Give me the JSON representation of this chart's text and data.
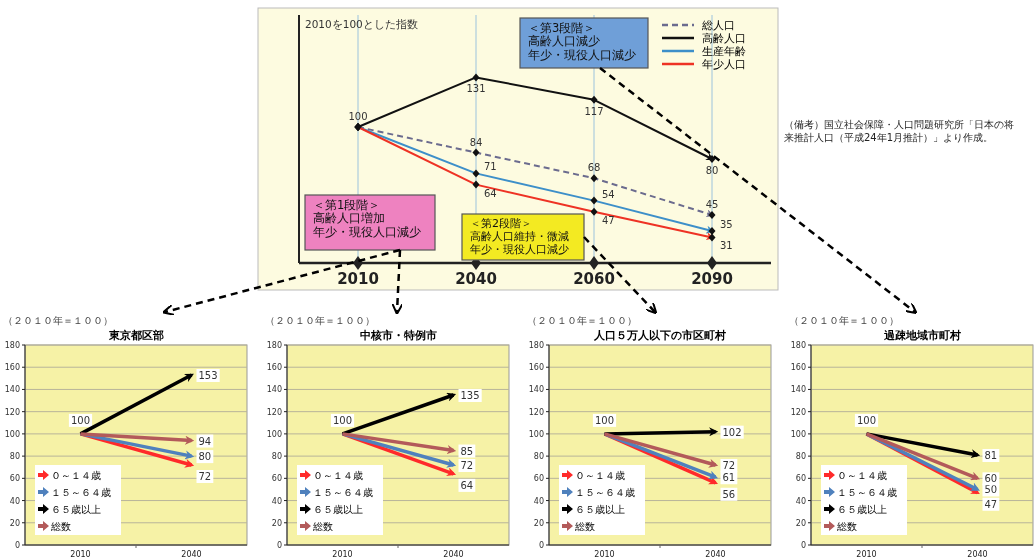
{
  "chart_data": [
    {
      "type": "line",
      "ylabel": "2010を100とした指数",
      "categories": [
        "2010",
        "2040",
        "2060",
        "2090"
      ],
      "ylim": [
        15,
        170
      ],
      "tick_labels": "x",
      "grid": "x",
      "marker": "diamond",
      "legend": "top right",
      "series": [
        {
          "name": "総人口",
          "color": "#6b6b8e",
          "line_style": "dashed",
          "values": [
            100,
            84,
            68,
            45
          ],
          "value_labels": [
            "100",
            "84",
            "68",
            "45"
          ]
        },
        {
          "name": "高齢人口",
          "color": "#111111",
          "values": [
            100,
            131,
            117,
            80
          ],
          "value_labels": [
            null,
            "131",
            "117",
            "80"
          ]
        },
        {
          "name": "生産年齢",
          "color": "#3d8fc9",
          "values": [
            100,
            71,
            54,
            35
          ],
          "value_labels": [
            null,
            "71",
            "54",
            "35"
          ]
        },
        {
          "name": "年少人口",
          "color": "#ee3224",
          "values": [
            100,
            64,
            47,
            31
          ],
          "value_labels": [
            null,
            "64",
            "47",
            "31"
          ]
        }
      ],
      "annotations": [
        "＜第1段階＞",
        "高齢人口増加",
        "年少・現役人口減少",
        "＜第2段階＞",
        "高齢人口維持・微減",
        "年少・現役人口減少",
        "＜第3段階＞",
        "高齢人口減少",
        "年少・現役人口減少",
        "（備考）国立社会保障・人口問題研究所「日本の将来推計人口（平成24年1月推計）」より作成。"
      ]
    },
    {
      "type": "line",
      "title": "東京都区部",
      "subtitle": "（２０１０年＝１００）",
      "categories": [
        "2010",
        "2040"
      ],
      "ylim": [
        0,
        180
      ],
      "yticks": [
        0,
        20,
        40,
        60,
        80,
        100,
        120,
        140,
        160,
        180
      ],
      "grid": "y",
      "legend": "left",
      "series": [
        {
          "name": "０～１４歳",
          "color": "#ff2a2a",
          "values": [
            100,
            72
          ],
          "value_labels": [
            "100",
            "72"
          ]
        },
        {
          "name": "１５～６４歳",
          "color": "#4f81bd",
          "values": [
            100,
            80
          ],
          "value_labels": [
            null,
            "80"
          ]
        },
        {
          "name": "６５歳以上",
          "color": "#000000",
          "values": [
            100,
            153
          ],
          "value_labels": [
            null,
            "153"
          ]
        },
        {
          "name": "総数",
          "color": "#b35a5a",
          "values": [
            100,
            94
          ],
          "value_labels": [
            null,
            "94"
          ]
        }
      ]
    },
    {
      "type": "line",
      "title": "中核市・特例市",
      "subtitle": "（２０１０年＝１００）",
      "categories": [
        "2010",
        "2040"
      ],
      "ylim": [
        0,
        180
      ],
      "yticks": [
        0,
        20,
        40,
        60,
        80,
        100,
        120,
        140,
        160,
        180
      ],
      "grid": "y",
      "legend": "left",
      "series": [
        {
          "name": "０～１４歳",
          "color": "#ff2a2a",
          "values": [
            100,
            64
          ],
          "value_labels": [
            "100",
            "64"
          ]
        },
        {
          "name": "１５～６４歳",
          "color": "#4f81bd",
          "values": [
            100,
            72
          ],
          "value_labels": [
            null,
            "72"
          ]
        },
        {
          "name": "６５歳以上",
          "color": "#000000",
          "values": [
            100,
            135
          ],
          "value_labels": [
            null,
            "135"
          ]
        },
        {
          "name": "総数",
          "color": "#b35a5a",
          "values": [
            100,
            85
          ],
          "value_labels": [
            null,
            "85"
          ]
        }
      ]
    },
    {
      "type": "line",
      "title": "人口５万人以下の市区町村",
      "subtitle": "（２０１０年＝１００）",
      "categories": [
        "2010",
        "2040"
      ],
      "ylim": [
        0,
        180
      ],
      "yticks": [
        0,
        20,
        40,
        60,
        80,
        100,
        120,
        140,
        160,
        180
      ],
      "grid": "y",
      "legend": "left",
      "series": [
        {
          "name": "０～１４歳",
          "color": "#ff2a2a",
          "values": [
            100,
            56
          ],
          "value_labels": [
            "100",
            "56"
          ]
        },
        {
          "name": "１５～６４歳",
          "color": "#4f81bd",
          "values": [
            100,
            61
          ],
          "value_labels": [
            null,
            "61"
          ]
        },
        {
          "name": "６５歳以上",
          "color": "#000000",
          "values": [
            100,
            102
          ],
          "value_labels": [
            null,
            "102"
          ]
        },
        {
          "name": "総数",
          "color": "#b35a5a",
          "values": [
            100,
            72
          ],
          "value_labels": [
            null,
            "72"
          ]
        }
      ]
    },
    {
      "type": "line",
      "title": "過疎地域市町村",
      "subtitle": "（２０１０年＝１００）",
      "categories": [
        "2010",
        "2040"
      ],
      "ylim": [
        0,
        180
      ],
      "yticks": [
        0,
        20,
        40,
        60,
        80,
        100,
        120,
        140,
        160,
        180
      ],
      "grid": "y",
      "legend": "left",
      "series": [
        {
          "name": "０～１４歳",
          "color": "#ff2a2a",
          "values": [
            100,
            47
          ],
          "value_labels": [
            "100",
            "47"
          ]
        },
        {
          "name": "１５～６４歳",
          "color": "#4f81bd",
          "values": [
            100,
            50
          ],
          "value_labels": [
            null,
            "50"
          ]
        },
        {
          "name": "６５歳以上",
          "color": "#000000",
          "values": [
            100,
            81
          ],
          "value_labels": [
            null,
            "81"
          ]
        },
        {
          "name": "総数",
          "color": "#b35a5a",
          "values": [
            100,
            60
          ],
          "value_labels": [
            null,
            "60"
          ]
        }
      ]
    }
  ]
}
